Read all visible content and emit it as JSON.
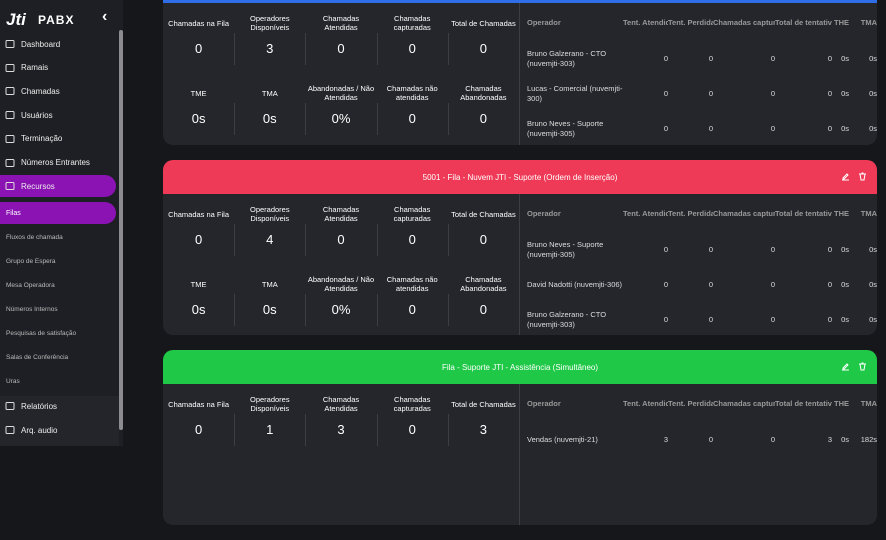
{
  "sidebar": {
    "brand": "PABX",
    "logo": "Jti",
    "collapse": "‹",
    "menu": [
      "Dashboard",
      "Ramais",
      "Chamadas",
      "Usuários",
      "Terminação",
      "Números Entrantes",
      "Recursos"
    ],
    "submenu": [
      "Filas",
      "Fluxos de chamada",
      "Grupo de Espera",
      "Mesa Operadora",
      "Números Internos",
      "Pesquisas de satisfação",
      "Salas de Conferência",
      "Uras"
    ],
    "bottom": [
      "Relatórios",
      "Arq. audio"
    ]
  },
  "queues": [
    {
      "stats": [
        [
          "Chamadas na Fila",
          "0"
        ],
        [
          "Operadores Disponíveis",
          "3"
        ],
        [
          "Chamadas Atendidas",
          "0"
        ],
        [
          "Chamadas capturadas",
          "0"
        ],
        [
          "Total de Chamadas",
          "0"
        ],
        [
          "TME",
          "0s"
        ],
        [
          "TMA",
          "0s"
        ],
        [
          "Abandonadas / Não Atendidas",
          "0%"
        ],
        [
          "Chamadas não atendidas",
          "0"
        ],
        [
          "Chamadas Abandonadas",
          "0"
        ]
      ],
      "columns": [
        "Operador",
        "Tent. Atendidas",
        "Tent. Perdidas",
        "Chamadas capturadas",
        "Total de tentativas",
        "THE",
        "TMA"
      ],
      "rows": [
        [
          "Bruno Galzerano - CTO (nuvemjti-303)",
          "0",
          "0",
          "0",
          "0",
          "0s",
          "0s"
        ],
        [
          "Lucas - Comercial (nuvemjti-300)",
          "0",
          "0",
          "0",
          "0",
          "0s",
          "0s"
        ],
        [
          "Bruno Neves - Suporte (nuvemjti-305)",
          "0",
          "0",
          "0",
          "0",
          "0s",
          "0s"
        ]
      ]
    },
    {
      "title": "5001 - Fila - Nuvem JTI - Suporte (Ordem de Inserção)",
      "stats": [
        [
          "Chamadas na Fila",
          "0"
        ],
        [
          "Operadores Disponíveis",
          "4"
        ],
        [
          "Chamadas Atendidas",
          "0"
        ],
        [
          "Chamadas capturadas",
          "0"
        ],
        [
          "Total de Chamadas",
          "0"
        ],
        [
          "TME",
          "0s"
        ],
        [
          "TMA",
          "0s"
        ],
        [
          "Abandonadas / Não Atendidas",
          "0%"
        ],
        [
          "Chamadas não atendidas",
          "0"
        ],
        [
          "Chamadas Abandonadas",
          "0"
        ]
      ],
      "columns": [
        "Operador",
        "Tent. Atendidas",
        "Tent. Perdidas",
        "Chamadas capturadas",
        "Total de tentativas",
        "THE",
        "TMA"
      ],
      "rows": [
        [
          "Bruno Neves - Suporte (nuvemjti-305)",
          "0",
          "0",
          "0",
          "0",
          "0s",
          "0s"
        ],
        [
          "David Nadotti (nuvemjti-306)",
          "0",
          "0",
          "0",
          "0",
          "0s",
          "0s"
        ],
        [
          "Bruno Galzerano - CTO (nuvemjti-303)",
          "0",
          "0",
          "0",
          "0",
          "0s",
          "0s"
        ]
      ]
    },
    {
      "title": "Fila - Suporte JTI - Assistência (Simultâneo)",
      "stats": [
        [
          "Chamadas na Fila",
          "0"
        ],
        [
          "Operadores Disponíveis",
          "1"
        ],
        [
          "Chamadas Atendidas",
          "3"
        ],
        [
          "Chamadas capturadas",
          "0"
        ],
        [
          "Total de Chamadas",
          "3"
        ]
      ],
      "columns": [
        "Operador",
        "Tent. Atendidas",
        "Tent. Perdidas",
        "Chamadas capturadas",
        "Total de tentativas",
        "THE",
        "TMA"
      ],
      "rows": [
        [
          "Vendas (nuvemjti-21)",
          "3",
          "0",
          "0",
          "3",
          "0s",
          "182s"
        ]
      ]
    }
  ]
}
